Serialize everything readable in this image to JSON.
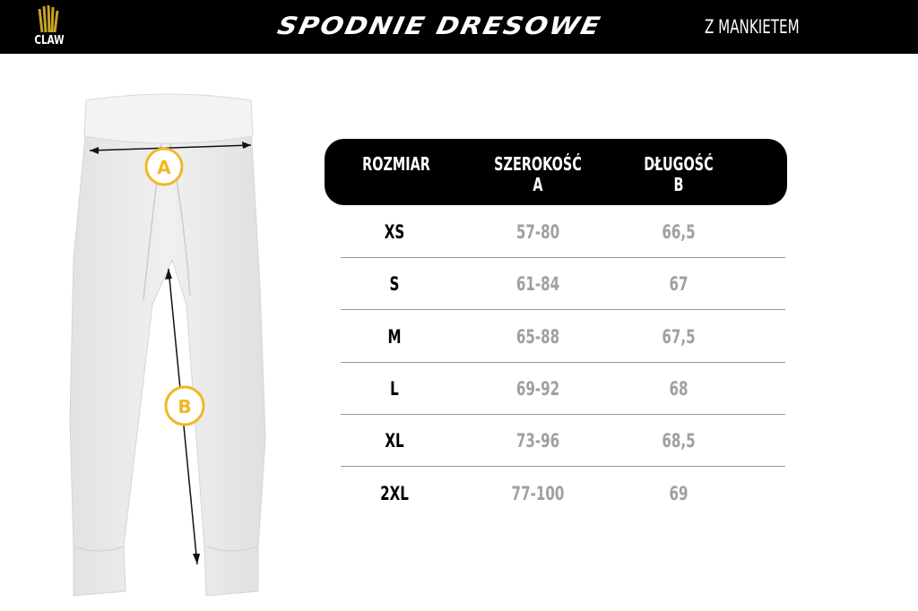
{
  "header": {
    "brand": "CLAW",
    "title": "SPODNIE DRESOWE",
    "subtitle": "Z MANKIETEM"
  },
  "diagram": {
    "markers": [
      "A",
      "B"
    ],
    "marker_color": "#f0b825"
  },
  "table": {
    "columns": [
      {
        "label": "ROZMIAR",
        "sub": ""
      },
      {
        "label": "SZEROKOŚĆ",
        "sub": "A"
      },
      {
        "label": "DŁUGOŚĆ",
        "sub": "B"
      }
    ],
    "rows": [
      [
        "XS",
        "57-80",
        "66,5"
      ],
      [
        "S",
        "61-84",
        "67"
      ],
      [
        "M",
        "65-88",
        "67,5"
      ],
      [
        "L",
        "69-92",
        "68"
      ],
      [
        "XL",
        "73-96",
        "68,5"
      ],
      [
        "2XL",
        "77-100",
        "69"
      ]
    ]
  }
}
